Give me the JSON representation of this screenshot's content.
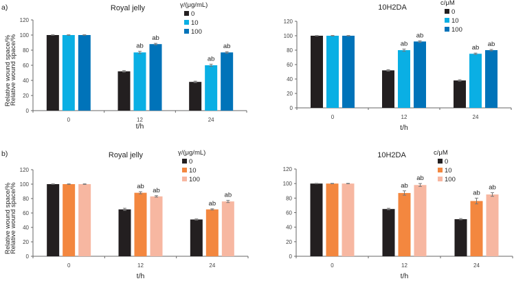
{
  "panel_labels": [
    "a)",
    "b)"
  ],
  "chart_data": [
    {
      "type": "bar",
      "panel": "a)",
      "title": "Royal jelly",
      "xlabel": "t/h",
      "ylabel": "Relative wound space/%",
      "ylim": [
        0,
        120
      ],
      "yticks": [
        0,
        20,
        40,
        60,
        80,
        100,
        120
      ],
      "categories": [
        "0",
        "12",
        "24"
      ],
      "legend_title": "γ/(μg/mL)",
      "legend_position": "top-right",
      "series": [
        {
          "name": "0",
          "color": "#231f20",
          "values": [
            100,
            52,
            38
          ],
          "errors": [
            0.3,
            1,
            1
          ],
          "labels": [
            "",
            "",
            ""
          ]
        },
        {
          "name": "10",
          "color": "#0aafe4",
          "values": [
            100,
            77,
            60
          ],
          "errors": [
            0.3,
            1.5,
            1.5
          ],
          "labels": [
            "",
            "ab",
            "ab"
          ]
        },
        {
          "name": "100",
          "color": "#0073b9",
          "values": [
            100,
            88,
            77
          ],
          "errors": [
            0.3,
            1,
            1
          ],
          "labels": [
            "",
            "ab",
            "ab"
          ]
        }
      ]
    },
    {
      "type": "bar",
      "panel": "",
      "title": "10H2DA",
      "xlabel": "t/h",
      "ylabel": "Relative wound space/%",
      "ylim": [
        0,
        120
      ],
      "yticks": [
        0,
        20,
        40,
        60,
        80,
        100,
        120
      ],
      "categories": [
        "0",
        "12",
        "24"
      ],
      "legend_title": "c/μM",
      "legend_position": "top-right",
      "series": [
        {
          "name": "0",
          "color": "#231f20",
          "values": [
            100,
            52,
            38
          ],
          "errors": [
            0.3,
            1,
            1
          ],
          "labels": [
            "",
            "",
            ""
          ]
        },
        {
          "name": "10",
          "color": "#0aafe4",
          "values": [
            100,
            80,
            75
          ],
          "errors": [
            0.3,
            1.5,
            1
          ],
          "labels": [
            "",
            "ab",
            "ab"
          ]
        },
        {
          "name": "100",
          "color": "#0073b9",
          "values": [
            100,
            92,
            80
          ],
          "errors": [
            0.3,
            1,
            1
          ],
          "labels": [
            "",
            "ab",
            "ab"
          ]
        }
      ]
    },
    {
      "type": "bar",
      "panel": "b)",
      "title": "Royal jelly",
      "xlabel": "t/h",
      "ylabel": "Relative wound space/%",
      "ylim": [
        0,
        120
      ],
      "yticks": [
        0,
        20,
        40,
        60,
        80,
        100,
        120
      ],
      "categories": [
        "0",
        "12",
        "24"
      ],
      "legend_title": "γ/(μg/mL)",
      "legend_position": "top-right",
      "series": [
        {
          "name": "0",
          "color": "#231f20",
          "values": [
            100,
            65,
            51
          ],
          "errors": [
            0.3,
            1.5,
            0.8
          ],
          "labels": [
            "",
            "",
            ""
          ]
        },
        {
          "name": "10",
          "color": "#f3873f",
          "values": [
            100,
            88,
            65
          ],
          "errors": [
            0.3,
            1.5,
            0.8
          ],
          "labels": [
            "",
            "ab",
            "ab"
          ]
        },
        {
          "name": "100",
          "color": "#f7b7a1",
          "values": [
            100,
            83,
            76
          ],
          "errors": [
            0.3,
            1,
            1.5
          ],
          "labels": [
            "",
            "ab",
            "ab"
          ]
        }
      ]
    },
    {
      "type": "bar",
      "panel": "",
      "title": "10H2DA",
      "xlabel": "t/h",
      "ylabel": "Relative wound space/%",
      "ylim": [
        0,
        120
      ],
      "yticks": [
        0,
        20,
        40,
        60,
        80,
        100,
        120
      ],
      "categories": [
        "0",
        "12",
        "24"
      ],
      "legend_title": "c/μM",
      "legend_position": "top-right",
      "series": [
        {
          "name": "0",
          "color": "#231f20",
          "values": [
            100,
            65,
            51
          ],
          "errors": [
            0.3,
            1,
            0.8
          ],
          "labels": [
            "",
            "",
            ""
          ]
        },
        {
          "name": "10",
          "color": "#f3873f",
          "values": [
            100,
            87,
            76
          ],
          "errors": [
            0.3,
            3,
            4
          ],
          "labels": [
            "",
            "ab",
            "ab"
          ]
        },
        {
          "name": "100",
          "color": "#f7b7a1",
          "values": [
            100,
            98,
            85
          ],
          "errors": [
            0.3,
            2,
            2.5
          ],
          "labels": [
            "",
            "ab",
            "ab"
          ]
        }
      ]
    }
  ]
}
